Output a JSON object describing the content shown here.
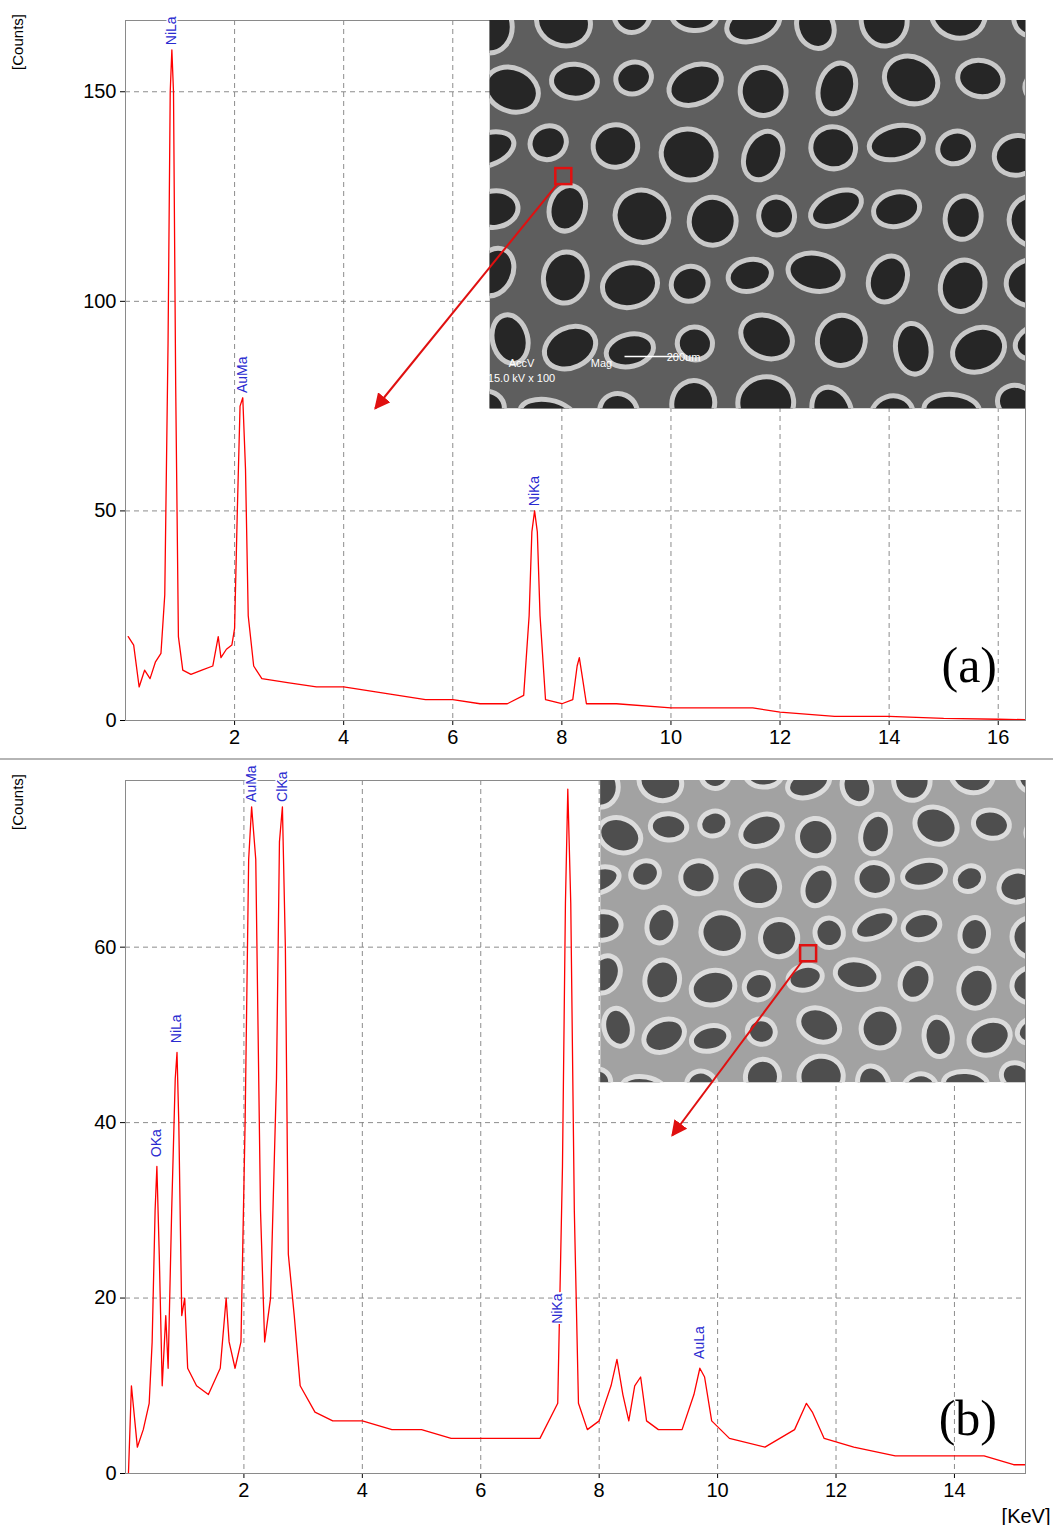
{
  "chart_data": [
    {
      "type": "line",
      "panel_label": "(a)",
      "y_label": "[Counts]",
      "color": "#ff0000",
      "grid": true,
      "xlim": [
        0,
        16.5
      ],
      "xticks": [
        2,
        4,
        6,
        8,
        10,
        12,
        14,
        16
      ],
      "ylim": [
        0,
        167
      ],
      "yticks": [
        0,
        50,
        100,
        150
      ],
      "x": [
        0.05,
        0.15,
        0.25,
        0.35,
        0.45,
        0.55,
        0.65,
        0.72,
        0.78,
        0.82,
        0.85,
        0.88,
        0.92,
        0.97,
        1.05,
        1.2,
        1.4,
        1.6,
        1.7,
        1.75,
        1.85,
        1.95,
        2.0,
        2.05,
        2.1,
        2.15,
        2.2,
        2.25,
        2.35,
        2.5,
        3.0,
        3.5,
        4.0,
        4.5,
        5.0,
        5.5,
        6.0,
        6.5,
        7.0,
        7.3,
        7.4,
        7.45,
        7.5,
        7.55,
        7.6,
        7.7,
        8.0,
        8.2,
        8.28,
        8.32,
        8.38,
        8.45,
        9.0,
        10,
        11,
        11.5,
        12,
        13,
        14,
        15,
        16,
        16.5
      ],
      "values": [
        20,
        18,
        8,
        12,
        10,
        14,
        16,
        30,
        90,
        150,
        160,
        150,
        80,
        20,
        12,
        11,
        12,
        13,
        20,
        15,
        17,
        18,
        22,
        50,
        75,
        77,
        60,
        25,
        13,
        10,
        9,
        8,
        8,
        7,
        6,
        5,
        5,
        4,
        4,
        6,
        25,
        45,
        50,
        45,
        25,
        5,
        4,
        5,
        13,
        15,
        10,
        4,
        4,
        3,
        3,
        3,
        2,
        1,
        1,
        0.5,
        0.3,
        0.2
      ],
      "annotations": [
        {
          "text": "NiLa",
          "x": 0.85,
          "y": 161
        },
        {
          "text": "AuMa",
          "x": 2.15,
          "y": 78
        },
        {
          "text": "NiKa",
          "x": 7.5,
          "y": 51
        }
      ],
      "inset_text": [
        "AccV",
        "Mag",
        "15.0 kV x 100",
        "200um"
      ]
    },
    {
      "type": "line",
      "panel_label": "(b)",
      "y_label": "[Counts]",
      "x_label": "[KeV]",
      "color": "#ff0000",
      "grid": true,
      "xlim": [
        0,
        15.2
      ],
      "xticks": [
        2,
        4,
        6,
        8,
        10,
        12,
        14
      ],
      "ylim": [
        0,
        79
      ],
      "yticks": [
        0,
        20,
        40,
        60
      ],
      "x": [
        0.05,
        0.1,
        0.2,
        0.3,
        0.4,
        0.45,
        0.5,
        0.53,
        0.57,
        0.62,
        0.68,
        0.72,
        0.78,
        0.84,
        0.87,
        0.9,
        0.95,
        1.0,
        1.05,
        1.2,
        1.4,
        1.6,
        1.7,
        1.75,
        1.85,
        1.95,
        2.02,
        2.08,
        2.13,
        2.2,
        2.28,
        2.35,
        2.45,
        2.55,
        2.6,
        2.65,
        2.7,
        2.75,
        2.85,
        2.95,
        3.2,
        3.5,
        4,
        4.5,
        5,
        5.5,
        6,
        6.5,
        7,
        7.3,
        7.38,
        7.43,
        7.47,
        7.52,
        7.58,
        7.65,
        7.8,
        8.0,
        8.2,
        8.3,
        8.4,
        8.5,
        8.6,
        8.7,
        8.8,
        9.0,
        9.4,
        9.6,
        9.7,
        9.78,
        9.9,
        10.2,
        10.8,
        11.3,
        11.5,
        11.6,
        11.8,
        12.3,
        13,
        14,
        14.5,
        15,
        15.2
      ],
      "values": [
        0,
        10,
        3,
        5,
        8,
        15,
        30,
        35,
        25,
        10,
        18,
        12,
        30,
        45,
        48,
        40,
        18,
        20,
        12,
        10,
        9,
        12,
        20,
        15,
        12,
        15,
        40,
        70,
        76,
        70,
        30,
        15,
        20,
        45,
        72,
        76,
        60,
        25,
        18,
        10,
        7,
        6,
        6,
        5,
        5,
        4,
        4,
        4,
        4,
        8,
        35,
        65,
        78,
        65,
        30,
        8,
        5,
        6,
        10,
        13,
        9,
        6,
        10,
        11,
        6,
        5,
        5,
        9,
        12,
        11,
        6,
        4,
        3,
        5,
        8,
        7,
        4,
        3,
        2,
        2,
        2,
        1,
        1
      ],
      "annotations": [
        {
          "text": "OKa",
          "x": 0.53,
          "y": 36
        },
        {
          "text": "NiLa",
          "x": 0.87,
          "y": 49
        },
        {
          "text": "AuMa",
          "x": 2.13,
          "y": 76.5
        },
        {
          "text": "ClKa",
          "x": 2.65,
          "y": 76.5
        },
        {
          "text": "NiKa",
          "x": 7.3,
          "y": 17
        },
        {
          "text": "AuLa",
          "x": 9.7,
          "y": 13
        }
      ]
    }
  ]
}
